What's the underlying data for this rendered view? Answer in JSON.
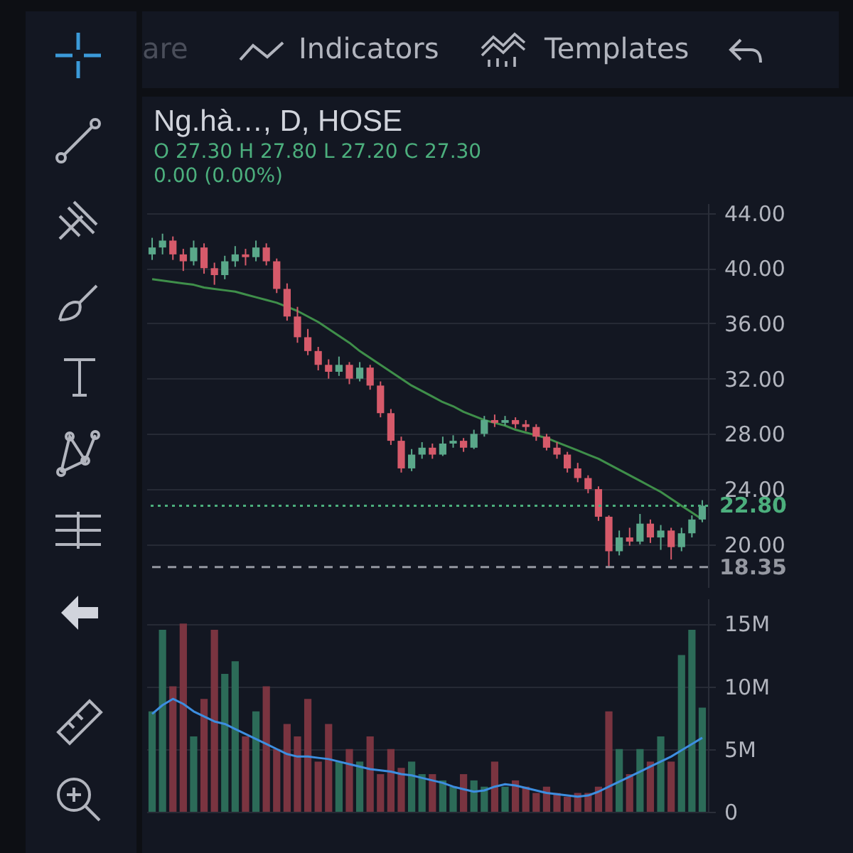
{
  "chart_data": [
    {
      "type": "candlestick",
      "title": "Ng.hà…, D, HOSE",
      "annotations": [
        "are",
        "Indicators",
        "Templates",
        "O 27.30 H 27.80 L 27.20 C 27.30",
        "0.00 (0.00%)"
      ],
      "categories": [
        null,
        null,
        null,
        null,
        null,
        null,
        null,
        null,
        null,
        null,
        null,
        null,
        null,
        null,
        null,
        null,
        null,
        null,
        null,
        null,
        null,
        null,
        null,
        null,
        null,
        null,
        null,
        null,
        null,
        null,
        null,
        null,
        null,
        null,
        null,
        null,
        null,
        null,
        null,
        null,
        null,
        null,
        null,
        null,
        null,
        null,
        null,
        null,
        null,
        null,
        null,
        null,
        null,
        null
      ],
      "ohlc": [
        [
          41.0,
          42.2,
          40.6,
          41.5
        ],
        [
          41.5,
          42.5,
          41.0,
          42.0
        ],
        [
          42.0,
          42.3,
          40.6,
          41.0
        ],
        [
          41.0,
          41.4,
          39.8,
          40.5
        ],
        [
          40.5,
          42.0,
          40.2,
          41.5
        ],
        [
          41.5,
          41.8,
          39.6,
          40.0
        ],
        [
          40.0,
          40.4,
          38.8,
          39.5
        ],
        [
          39.5,
          40.9,
          39.2,
          40.5
        ],
        [
          40.5,
          41.6,
          40.1,
          41.0
        ],
        [
          41.0,
          41.4,
          40.2,
          40.8
        ],
        [
          40.8,
          42.0,
          40.5,
          41.5
        ],
        [
          41.5,
          41.8,
          40.2,
          40.5
        ],
        [
          40.5,
          40.7,
          38.2,
          38.5
        ],
        [
          38.5,
          38.9,
          36.2,
          36.5
        ],
        [
          36.5,
          37.2,
          34.6,
          35.0
        ],
        [
          35.0,
          35.6,
          33.7,
          34.0
        ],
        [
          34.0,
          34.3,
          32.6,
          33.0
        ],
        [
          33.0,
          33.4,
          32.0,
          32.5
        ],
        [
          32.5,
          33.6,
          32.2,
          33.0
        ],
        [
          33.0,
          33.2,
          31.6,
          32.0
        ],
        [
          32.0,
          33.2,
          31.8,
          32.8
        ],
        [
          32.8,
          33.0,
          31.2,
          31.5
        ],
        [
          31.5,
          31.8,
          29.2,
          29.5
        ],
        [
          29.5,
          29.8,
          27.2,
          27.5
        ],
        [
          27.5,
          27.8,
          25.2,
          25.5
        ],
        [
          25.5,
          26.9,
          25.3,
          26.5
        ],
        [
          26.5,
          27.4,
          26.2,
          27.0
        ],
        [
          27.0,
          27.3,
          26.2,
          26.5
        ],
        [
          26.5,
          27.8,
          26.4,
          27.3
        ],
        [
          27.3,
          27.9,
          27.0,
          27.5
        ],
        [
          27.5,
          27.7,
          26.7,
          27.0
        ],
        [
          27.0,
          28.3,
          26.9,
          28.0
        ],
        [
          28.0,
          29.3,
          27.8,
          29.0
        ],
        [
          29.0,
          29.4,
          28.5,
          28.8
        ],
        [
          28.8,
          29.3,
          28.6,
          29.0
        ],
        [
          29.0,
          29.2,
          28.4,
          28.7
        ],
        [
          28.7,
          29.0,
          28.2,
          28.5
        ],
        [
          28.5,
          28.7,
          27.5,
          27.8
        ],
        [
          27.8,
          28.0,
          26.8,
          27.0
        ],
        [
          27.0,
          27.4,
          26.2,
          26.5
        ],
        [
          26.5,
          26.7,
          25.2,
          25.5
        ],
        [
          25.5,
          25.9,
          24.5,
          24.8
        ],
        [
          24.8,
          25.0,
          23.7,
          24.0
        ],
        [
          24.0,
          24.2,
          21.7,
          22.0
        ],
        [
          22.0,
          22.1,
          18.4,
          19.5
        ],
        [
          19.5,
          21.0,
          19.2,
          20.5
        ],
        [
          20.5,
          21.2,
          19.9,
          20.2
        ],
        [
          20.2,
          22.2,
          20.0,
          21.5
        ],
        [
          21.5,
          21.8,
          20.1,
          20.5
        ],
        [
          20.5,
          21.4,
          19.6,
          21.0
        ],
        [
          21.0,
          21.2,
          18.9,
          19.8
        ],
        [
          19.8,
          21.2,
          19.5,
          20.8
        ],
        [
          20.8,
          22.1,
          20.5,
          21.8
        ],
        [
          21.8,
          23.2,
          21.6,
          22.8
        ]
      ],
      "colors": [
        "#5aa88a",
        "#5aa88a",
        "#d65a6a",
        "#d65a6a",
        "#5aa88a",
        "#d65a6a",
        "#d65a6a",
        "#5aa88a",
        "#5aa88a",
        "#d65a6a",
        "#5aa88a",
        "#d65a6a",
        "#d65a6a",
        "#d65a6a",
        "#d65a6a",
        "#d65a6a",
        "#d65a6a",
        "#d65a6a",
        "#5aa88a",
        "#d65a6a",
        "#5aa88a",
        "#d65a6a",
        "#d65a6a",
        "#d65a6a",
        "#d65a6a",
        "#5aa88a",
        "#5aa88a",
        "#d65a6a",
        "#5aa88a",
        "#5aa88a",
        "#d65a6a",
        "#5aa88a",
        "#5aa88a",
        "#d65a6a",
        "#5aa88a",
        "#d65a6a",
        "#d65a6a",
        "#d65a6a",
        "#d65a6a",
        "#d65a6a",
        "#d65a6a",
        "#d65a6a",
        "#d65a6a",
        "#d65a6a",
        "#d65a6a",
        "#5aa88a",
        "#d65a6a",
        "#5aa88a",
        "#d65a6a",
        "#5aa88a",
        "#d65a6a",
        "#5aa88a",
        "#5aa88a",
        "#5aa88a"
      ],
      "series": [
        {
          "type": "line",
          "color": "#3f8f4a",
          "values": [
            39.2,
            39.1,
            39.0,
            38.9,
            38.8,
            38.6,
            38.5,
            38.4,
            38.3,
            38.1,
            37.9,
            37.7,
            37.5,
            37.2,
            36.9,
            36.5,
            36.1,
            35.6,
            35.1,
            34.6,
            34.0,
            33.5,
            33.0,
            32.5,
            32.0,
            31.5,
            31.1,
            30.7,
            30.3,
            30.0,
            29.6,
            29.3,
            29.0,
            28.8,
            28.6,
            28.3,
            28.1,
            27.9,
            27.7,
            27.4,
            27.1,
            26.8,
            26.5,
            26.2,
            25.8,
            25.4,
            25.0,
            24.6,
            24.2,
            23.8,
            23.3,
            22.8,
            22.3,
            21.8
          ]
        }
      ],
      "ylim": [
        16.9,
        44.7
      ],
      "yticks": [
        {
          "value": 20,
          "label": "20.00"
        },
        {
          "value": 24,
          "label": "24.00"
        },
        {
          "value": 28,
          "label": "28.00"
        },
        {
          "value": 32,
          "label": "32.00"
        },
        {
          "value": 36,
          "label": "36.00"
        },
        {
          "value": 40,
          "label": "40.00"
        },
        {
          "value": 44,
          "label": "44.00"
        }
      ],
      "grid": "y",
      "tick_labels": "y",
      "ref_lines": [
        {
          "axis": "y",
          "value": 22.8,
          "label": "22.80",
          "color": "#4caf7d",
          "line_style": "dotted"
        },
        {
          "axis": "y",
          "value": 18.35,
          "label": "18.35",
          "color": "#9598a1",
          "line_style": "dashed"
        }
      ]
    },
    {
      "type": "bar",
      "categories": [
        null,
        null,
        null,
        null,
        null,
        null,
        null,
        null,
        null,
        null,
        null,
        null,
        null,
        null,
        null,
        null,
        null,
        null,
        null,
        null,
        null,
        null,
        null,
        null,
        null,
        null,
        null,
        null,
        null,
        null,
        null,
        null,
        null,
        null,
        null,
        null,
        null,
        null,
        null,
        null,
        null,
        null,
        null,
        null,
        null,
        null,
        null,
        null,
        null,
        null,
        null,
        null,
        null,
        null
      ],
      "series": [
        {
          "type": "bar",
          "values": [
            8,
            14.5,
            10,
            15,
            6,
            9,
            14.5,
            11,
            12,
            6,
            8,
            10,
            5,
            7,
            6,
            9,
            4,
            7,
            4,
            5,
            4,
            6,
            3,
            5,
            3.5,
            4,
            3,
            3,
            2.5,
            2,
            3,
            2.5,
            2,
            4,
            2,
            2.5,
            2,
            1.5,
            2,
            1.5,
            1.2,
            1.5,
            1.5,
            2,
            8,
            5,
            3,
            5,
            4,
            6,
            4,
            12.5,
            14.5,
            8.3
          ],
          "colors": [
            "#2c6b58",
            "#2c6b58",
            "#7a3440",
            "#7a3440",
            "#2c6b58",
            "#7a3440",
            "#7a3440",
            "#2c6b58",
            "#2c6b58",
            "#7a3440",
            "#2c6b58",
            "#7a3440",
            "#7a3440",
            "#7a3440",
            "#7a3440",
            "#7a3440",
            "#7a3440",
            "#7a3440",
            "#2c6b58",
            "#7a3440",
            "#2c6b58",
            "#7a3440",
            "#7a3440",
            "#7a3440",
            "#7a3440",
            "#2c6b58",
            "#2c6b58",
            "#7a3440",
            "#2c6b58",
            "#2c6b58",
            "#7a3440",
            "#2c6b58",
            "#2c6b58",
            "#7a3440",
            "#2c6b58",
            "#7a3440",
            "#7a3440",
            "#7a3440",
            "#7a3440",
            "#7a3440",
            "#7a3440",
            "#7a3440",
            "#7a3440",
            "#7a3440",
            "#7a3440",
            "#2c6b58",
            "#7a3440",
            "#2c6b58",
            "#7a3440",
            "#2c6b58",
            "#7a3440",
            "#2c6b58",
            "#2c6b58",
            "#2c6b58"
          ]
        },
        {
          "type": "line",
          "color": "#3d8ee0",
          "values": [
            7.8,
            8.5,
            9.0,
            8.6,
            8.0,
            7.6,
            7.2,
            7.0,
            6.6,
            6.2,
            5.8,
            5.4,
            5.0,
            4.6,
            4.4,
            4.4,
            4.3,
            4.2,
            4.0,
            3.8,
            3.6,
            3.4,
            3.3,
            3.2,
            3.0,
            2.9,
            2.7,
            2.5,
            2.3,
            2.0,
            1.8,
            1.6,
            1.7,
            2.0,
            2.2,
            2.1,
            1.9,
            1.7,
            1.5,
            1.4,
            1.3,
            1.2,
            1.3,
            1.6,
            2.0,
            2.4,
            2.8,
            3.2,
            3.6,
            4.0,
            4.4,
            4.9,
            5.4,
            5.9
          ]
        }
      ],
      "ylim": [
        0,
        17
      ],
      "yticks": [
        {
          "value": 0,
          "label": "0"
        },
        {
          "value": 5,
          "label": "5M"
        },
        {
          "value": 10,
          "label": "10M"
        },
        {
          "value": 15,
          "label": "15M"
        }
      ],
      "grid": "y",
      "tick_labels": "y"
    }
  ]
}
